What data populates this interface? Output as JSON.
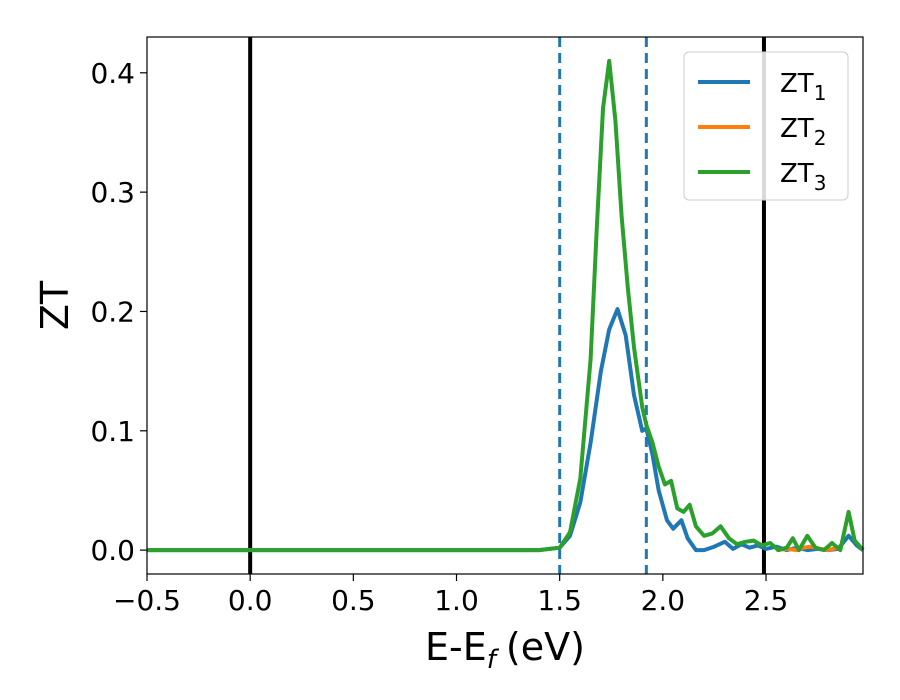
{
  "chart_data": {
    "type": "line",
    "xlabel": "E-E",
    "xlabel_sub": "f",
    "xlabel_unit": "(eV)",
    "ylabel": "ZT",
    "xlim": [
      -0.5,
      2.97
    ],
    "ylim": [
      -0.02,
      0.43
    ],
    "xticks": [
      -0.5,
      0.0,
      0.5,
      1.0,
      1.5,
      2.0,
      2.5
    ],
    "xtick_labels": [
      "−0.5",
      "0.0",
      "0.5",
      "1.0",
      "1.5",
      "2.0",
      "2.5"
    ],
    "yticks": [
      0.0,
      0.1,
      0.2,
      0.3,
      0.4
    ],
    "ytick_labels": [
      "0.0",
      "0.1",
      "0.2",
      "0.3",
      "0.4"
    ],
    "legend_position": "top-right",
    "vlines": [
      {
        "x": 0.0,
        "color": "#000000",
        "style": "solid"
      },
      {
        "x": 2.49,
        "color": "#000000",
        "style": "solid"
      },
      {
        "x": 1.5,
        "color": "#1f77b4",
        "style": "dashed"
      },
      {
        "x": 1.92,
        "color": "#1f77b4",
        "style": "dashed"
      }
    ],
    "series": [
      {
        "name": "ZT",
        "sub": "1",
        "color": "#1f77b4",
        "x": [
          -0.5,
          1.4,
          1.5,
          1.55,
          1.6,
          1.65,
          1.7,
          1.74,
          1.78,
          1.82,
          1.86,
          1.9,
          1.92,
          1.95,
          1.98,
          2.02,
          2.05,
          2.09,
          2.12,
          2.16,
          2.2,
          2.25,
          2.3,
          2.34,
          2.38,
          2.42,
          2.46,
          2.5,
          2.55,
          2.6,
          2.65,
          2.7,
          2.75,
          2.8,
          2.85,
          2.9,
          2.94,
          2.97
        ],
        "y": [
          0.0,
          0.0,
          0.002,
          0.012,
          0.04,
          0.09,
          0.15,
          0.185,
          0.202,
          0.18,
          0.13,
          0.1,
          0.102,
          0.08,
          0.05,
          0.025,
          0.018,
          0.025,
          0.01,
          0.0,
          0.0,
          0.003,
          0.007,
          0.001,
          0.005,
          0.002,
          0.004,
          0.001,
          0.003,
          0.0,
          0.002,
          0.0,
          0.001,
          0.0,
          0.001,
          0.012,
          0.004,
          0.0
        ]
      },
      {
        "name": "ZT",
        "sub": "2",
        "color": "#ff7f0e",
        "x": [
          2.55,
          2.6,
          2.65,
          2.68,
          2.72,
          2.76,
          2.8,
          2.85
        ],
        "y": [
          0.0,
          0.001,
          0.0,
          0.002,
          0.003,
          0.001,
          0.0,
          0.002
        ]
      },
      {
        "name": "ZT",
        "sub": "3",
        "color": "#2ca02c",
        "x": [
          -0.5,
          1.4,
          1.5,
          1.55,
          1.6,
          1.65,
          1.68,
          1.71,
          1.74,
          1.77,
          1.8,
          1.83,
          1.86,
          1.9,
          1.92,
          1.95,
          1.98,
          2.01,
          2.04,
          2.07,
          2.1,
          2.13,
          2.16,
          2.2,
          2.24,
          2.28,
          2.32,
          2.36,
          2.4,
          2.44,
          2.48,
          2.52,
          2.56,
          2.6,
          2.63,
          2.66,
          2.7,
          2.74,
          2.78,
          2.82,
          2.86,
          2.9,
          2.93,
          2.97
        ],
        "y": [
          0.0,
          0.0,
          0.002,
          0.015,
          0.06,
          0.16,
          0.27,
          0.37,
          0.41,
          0.36,
          0.28,
          0.22,
          0.17,
          0.12,
          0.105,
          0.09,
          0.07,
          0.055,
          0.058,
          0.035,
          0.032,
          0.038,
          0.02,
          0.012,
          0.014,
          0.02,
          0.01,
          0.005,
          0.007,
          0.008,
          0.004,
          0.006,
          0.0,
          0.002,
          0.01,
          0.0,
          0.012,
          0.002,
          0.0,
          0.006,
          0.0,
          0.032,
          0.008,
          0.0
        ]
      }
    ]
  }
}
